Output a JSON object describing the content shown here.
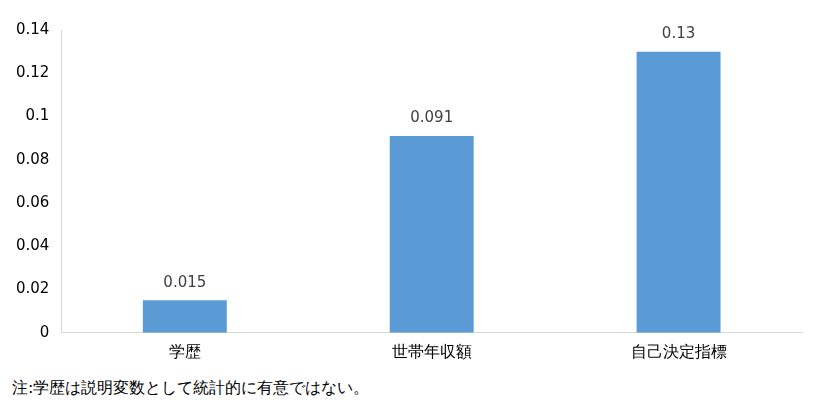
{
  "chart_data": {
    "type": "bar",
    "categories": [
      "学歴",
      "世帯年収額",
      "自己決定指標"
    ],
    "values": [
      0.015,
      0.091,
      0.13
    ],
    "color": "#5b9bd5",
    "ylim": [
      0,
      0.14
    ],
    "yticks": [
      0,
      0.02,
      0.04,
      0.06,
      0.08,
      0.1,
      0.12,
      0.14
    ],
    "grid": false,
    "data_labels": true,
    "annotation": "注:学歴は説明変数として統計的に有意ではない。"
  }
}
